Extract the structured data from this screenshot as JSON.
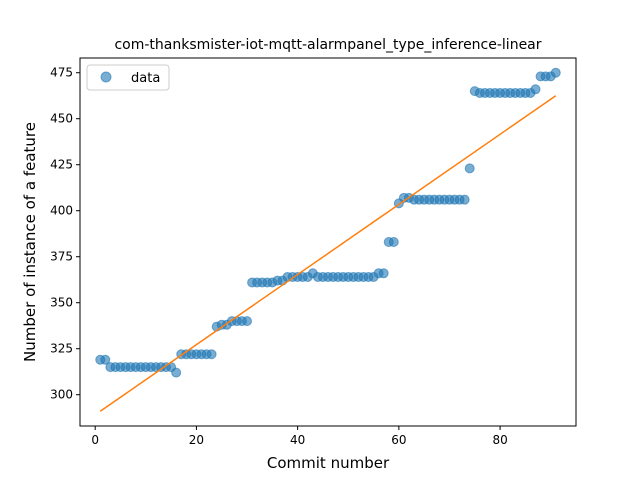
{
  "chart_data": {
    "type": "scatter",
    "title": "com-thanksmister-iot-mqtt-alarmpanel_type_inference-linear",
    "xlabel": "Commit number",
    "ylabel": "Number of instance of a feature",
    "xlim": [
      -3,
      95
    ],
    "ylim": [
      283,
      483
    ],
    "xticks": [
      0,
      20,
      40,
      60,
      80
    ],
    "yticks": [
      300,
      325,
      350,
      375,
      400,
      425,
      450,
      475
    ],
    "legend": {
      "position": "top-left",
      "label": "data"
    },
    "colors": {
      "points": "#1f77b4",
      "fit": "#ff7f0e"
    },
    "series": [
      {
        "name": "data",
        "kind": "scatter",
        "x": [
          1,
          2,
          3,
          4,
          5,
          6,
          7,
          8,
          9,
          10,
          11,
          12,
          13,
          14,
          15,
          16,
          17,
          18,
          19,
          20,
          21,
          22,
          23,
          24,
          25,
          26,
          27,
          28,
          29,
          30,
          31,
          32,
          33,
          34,
          35,
          36,
          37,
          38,
          39,
          40,
          41,
          42,
          43,
          44,
          45,
          46,
          47,
          48,
          49,
          50,
          51,
          52,
          53,
          54,
          55,
          56,
          57,
          58,
          59,
          60,
          61,
          62,
          63,
          64,
          65,
          66,
          67,
          68,
          69,
          70,
          71,
          72,
          73,
          74,
          75,
          76,
          77,
          78,
          79,
          80,
          81,
          82,
          83,
          84,
          85,
          86,
          87,
          88,
          89,
          90,
          91
        ],
        "y": [
          319,
          319,
          315,
          315,
          315,
          315,
          315,
          315,
          315,
          315,
          315,
          315,
          315,
          315,
          315,
          312,
          322,
          322,
          322,
          322,
          322,
          322,
          322,
          337,
          338,
          338,
          340,
          340,
          340,
          340,
          361,
          361,
          361,
          361,
          361,
          362,
          362,
          364,
          364,
          364,
          364,
          364,
          366,
          364,
          364,
          364,
          364,
          364,
          364,
          364,
          364,
          364,
          364,
          364,
          364,
          366,
          366,
          383,
          383,
          404,
          407,
          407,
          406,
          406,
          406,
          406,
          406,
          406,
          406,
          406,
          406,
          406,
          406,
          423,
          465,
          464,
          464,
          464,
          464,
          464,
          464,
          464,
          464,
          464,
          464,
          464,
          466,
          473,
          473,
          473,
          475
        ]
      },
      {
        "name": "",
        "kind": "line",
        "x": [
          1,
          91
        ],
        "y": [
          291,
          462.5
        ]
      }
    ]
  }
}
